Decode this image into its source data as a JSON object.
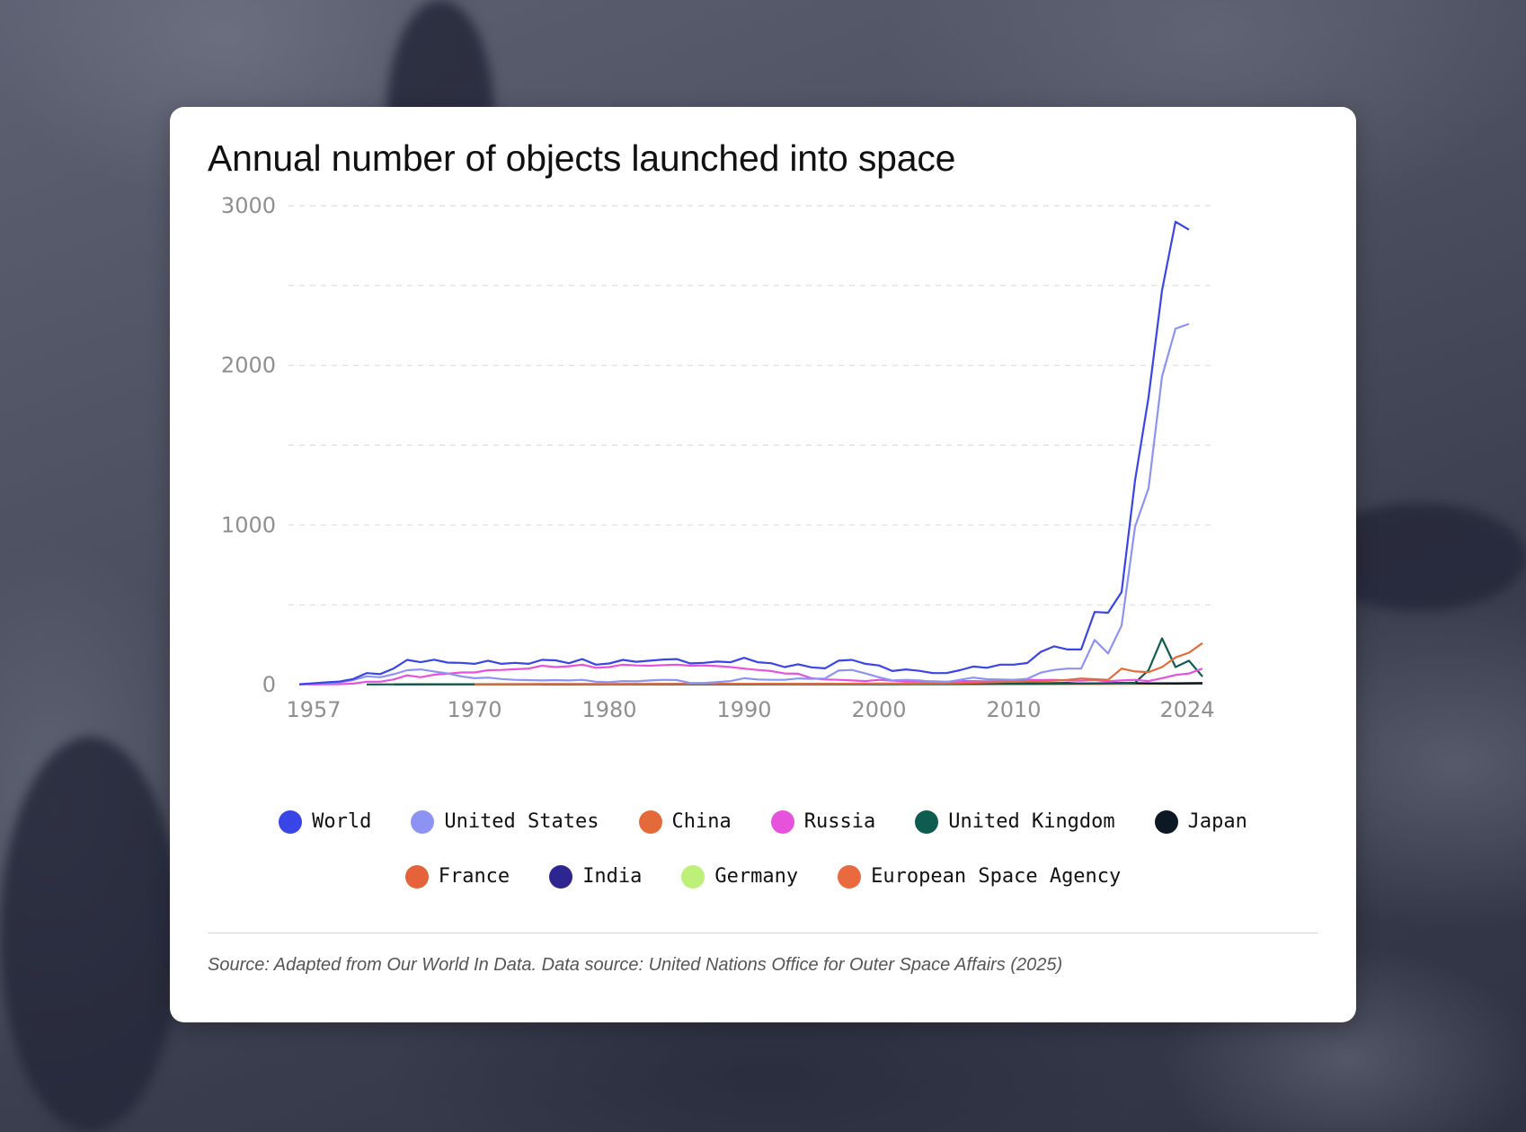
{
  "chart_data": {
    "type": "line",
    "title": "Annual number of objects launched into space",
    "source": "Source: Adapted from Our World In Data. Data source: United Nations Office for Outer Space Affairs (2025)",
    "ylim": [
      0,
      3000
    ],
    "xlim": [
      1957,
      2025
    ],
    "y_ticks": [
      "0",
      "1000",
      "2000",
      "3000"
    ],
    "x_ticks": [
      "1957",
      "1970",
      "1980",
      "1990",
      "2000",
      "2010",
      "2024"
    ],
    "grid": "horizontal-dashed",
    "legend_position": "bottom",
    "series": [
      {
        "name": "World",
        "color": "#3945e6",
        "points": [
          [
            1957,
            2
          ],
          [
            1958,
            8
          ],
          [
            1959,
            14
          ],
          [
            1960,
            19
          ],
          [
            1961,
            35
          ],
          [
            1962,
            72
          ],
          [
            1963,
            66
          ],
          [
            1964,
            101
          ],
          [
            1965,
            155
          ],
          [
            1966,
            140
          ],
          [
            1967,
            156
          ],
          [
            1968,
            138
          ],
          [
            1969,
            136
          ],
          [
            1970,
            130
          ],
          [
            1971,
            150
          ],
          [
            1972,
            130
          ],
          [
            1973,
            136
          ],
          [
            1974,
            130
          ],
          [
            1975,
            155
          ],
          [
            1976,
            152
          ],
          [
            1977,
            134
          ],
          [
            1978,
            160
          ],
          [
            1979,
            125
          ],
          [
            1980,
            132
          ],
          [
            1981,
            155
          ],
          [
            1982,
            143
          ],
          [
            1983,
            150
          ],
          [
            1984,
            157
          ],
          [
            1985,
            160
          ],
          [
            1986,
            133
          ],
          [
            1987,
            136
          ],
          [
            1988,
            144
          ],
          [
            1989,
            140
          ],
          [
            1990,
            168
          ],
          [
            1991,
            140
          ],
          [
            1992,
            134
          ],
          [
            1993,
            110
          ],
          [
            1994,
            127
          ],
          [
            1995,
            108
          ],
          [
            1996,
            102
          ],
          [
            1997,
            150
          ],
          [
            1998,
            155
          ],
          [
            1999,
            130
          ],
          [
            2000,
            120
          ],
          [
            2001,
            85
          ],
          [
            2002,
            95
          ],
          [
            2003,
            86
          ],
          [
            2004,
            72
          ],
          [
            2005,
            72
          ],
          [
            2006,
            90
          ],
          [
            2007,
            113
          ],
          [
            2008,
            105
          ],
          [
            2009,
            125
          ],
          [
            2010,
            125
          ],
          [
            2011,
            135
          ],
          [
            2012,
            205
          ],
          [
            2013,
            240
          ],
          [
            2014,
            220
          ],
          [
            2015,
            220
          ],
          [
            2016,
            455
          ],
          [
            2017,
            450
          ],
          [
            2018,
            580
          ],
          [
            2019,
            1280
          ],
          [
            2020,
            1800
          ],
          [
            2021,
            2470
          ],
          [
            2022,
            2900
          ],
          [
            2023,
            2850
          ]
        ]
      },
      {
        "name": "United States",
        "color": "#8c93f2",
        "points": [
          [
            1957,
            0
          ],
          [
            1958,
            6
          ],
          [
            1959,
            10
          ],
          [
            1960,
            14
          ],
          [
            1961,
            28
          ],
          [
            1962,
            52
          ],
          [
            1963,
            46
          ],
          [
            1964,
            65
          ],
          [
            1965,
            90
          ],
          [
            1966,
            95
          ],
          [
            1967,
            82
          ],
          [
            1968,
            70
          ],
          [
            1969,
            52
          ],
          [
            1970,
            40
          ],
          [
            1971,
            44
          ],
          [
            1972,
            35
          ],
          [
            1973,
            30
          ],
          [
            1974,
            28
          ],
          [
            1975,
            26
          ],
          [
            1976,
            28
          ],
          [
            1977,
            26
          ],
          [
            1978,
            30
          ],
          [
            1979,
            18
          ],
          [
            1980,
            15
          ],
          [
            1981,
            22
          ],
          [
            1982,
            20
          ],
          [
            1983,
            26
          ],
          [
            1984,
            30
          ],
          [
            1985,
            28
          ],
          [
            1986,
            10
          ],
          [
            1987,
            10
          ],
          [
            1988,
            16
          ],
          [
            1989,
            22
          ],
          [
            1990,
            40
          ],
          [
            1991,
            32
          ],
          [
            1992,
            30
          ],
          [
            1993,
            30
          ],
          [
            1994,
            38
          ],
          [
            1995,
            36
          ],
          [
            1996,
            38
          ],
          [
            1997,
            88
          ],
          [
            1998,
            92
          ],
          [
            1999,
            70
          ],
          [
            2000,
            46
          ],
          [
            2001,
            26
          ],
          [
            2002,
            30
          ],
          [
            2003,
            26
          ],
          [
            2004,
            18
          ],
          [
            2005,
            16
          ],
          [
            2006,
            30
          ],
          [
            2007,
            44
          ],
          [
            2008,
            34
          ],
          [
            2009,
            32
          ],
          [
            2010,
            30
          ],
          [
            2011,
            36
          ],
          [
            2012,
            75
          ],
          [
            2013,
            92
          ],
          [
            2014,
            100
          ],
          [
            2015,
            100
          ],
          [
            2016,
            280
          ],
          [
            2017,
            195
          ],
          [
            2018,
            370
          ],
          [
            2019,
            990
          ],
          [
            2020,
            1230
          ],
          [
            2021,
            1930
          ],
          [
            2022,
            2230
          ],
          [
            2023,
            2260
          ]
        ]
      },
      {
        "name": "China",
        "color": "#e56a3a",
        "points": [
          [
            1970,
            1
          ],
          [
            1975,
            3
          ],
          [
            1980,
            2
          ],
          [
            1985,
            4
          ],
          [
            1990,
            5
          ],
          [
            1995,
            4
          ],
          [
            2000,
            6
          ],
          [
            2005,
            8
          ],
          [
            2010,
            18
          ],
          [
            2013,
            24
          ],
          [
            2014,
            30
          ],
          [
            2015,
            38
          ],
          [
            2016,
            34
          ],
          [
            2017,
            30
          ],
          [
            2018,
            100
          ],
          [
            2019,
            82
          ],
          [
            2020,
            78
          ],
          [
            2021,
            110
          ],
          [
            2022,
            170
          ],
          [
            2023,
            200
          ],
          [
            2024,
            260
          ]
        ]
      },
      {
        "name": "Russia",
        "color": "#e752dc",
        "points": [
          [
            1957,
            2
          ],
          [
            1958,
            1
          ],
          [
            1959,
            2
          ],
          [
            1960,
            3
          ],
          [
            1961,
            6
          ],
          [
            1962,
            18
          ],
          [
            1963,
            18
          ],
          [
            1964,
            32
          ],
          [
            1965,
            58
          ],
          [
            1966,
            46
          ],
          [
            1967,
            62
          ],
          [
            1968,
            68
          ],
          [
            1969,
            76
          ],
          [
            1970,
            76
          ],
          [
            1971,
            90
          ],
          [
            1972,
            92
          ],
          [
            1973,
            96
          ],
          [
            1974,
            100
          ],
          [
            1975,
            118
          ],
          [
            1976,
            110
          ],
          [
            1977,
            115
          ],
          [
            1978,
            125
          ],
          [
            1979,
            105
          ],
          [
            1980,
            110
          ],
          [
            1981,
            125
          ],
          [
            1982,
            120
          ],
          [
            1983,
            118
          ],
          [
            1984,
            122
          ],
          [
            1985,
            125
          ],
          [
            1986,
            118
          ],
          [
            1987,
            120
          ],
          [
            1988,
            116
          ],
          [
            1989,
            110
          ],
          [
            1990,
            100
          ],
          [
            1991,
            92
          ],
          [
            1992,
            85
          ],
          [
            1993,
            70
          ],
          [
            1994,
            68
          ],
          [
            1995,
            40
          ],
          [
            1996,
            32
          ],
          [
            1997,
            30
          ],
          [
            1998,
            26
          ],
          [
            1999,
            22
          ],
          [
            2000,
            30
          ],
          [
            2001,
            24
          ],
          [
            2002,
            20
          ],
          [
            2003,
            20
          ],
          [
            2004,
            20
          ],
          [
            2005,
            18
          ],
          [
            2006,
            22
          ],
          [
            2007,
            22
          ],
          [
            2008,
            20
          ],
          [
            2009,
            22
          ],
          [
            2010,
            24
          ],
          [
            2011,
            30
          ],
          [
            2012,
            28
          ],
          [
            2013,
            30
          ],
          [
            2014,
            26
          ],
          [
            2015,
            24
          ],
          [
            2016,
            28
          ],
          [
            2017,
            20
          ],
          [
            2018,
            26
          ],
          [
            2019,
            30
          ],
          [
            2020,
            22
          ],
          [
            2021,
            40
          ],
          [
            2022,
            60
          ],
          [
            2023,
            70
          ],
          [
            2024,
            100
          ]
        ]
      },
      {
        "name": "United Kingdom",
        "color": "#0e5c4f",
        "points": [
          [
            1962,
            1
          ],
          [
            1970,
            2
          ],
          [
            1980,
            2
          ],
          [
            1990,
            2
          ],
          [
            2000,
            3
          ],
          [
            2010,
            4
          ],
          [
            2015,
            6
          ],
          [
            2017,
            8
          ],
          [
            2018,
            10
          ],
          [
            2019,
            12
          ],
          [
            2020,
            90
          ],
          [
            2021,
            290
          ],
          [
            2022,
            110
          ],
          [
            2023,
            150
          ],
          [
            2024,
            50
          ]
        ]
      },
      {
        "name": "Japan",
        "color": "#0c1824",
        "points": [
          [
            1964,
            1
          ],
          [
            1970,
            2
          ],
          [
            1980,
            3
          ],
          [
            1990,
            4
          ],
          [
            2000,
            4
          ],
          [
            2010,
            6
          ],
          [
            2014,
            10
          ],
          [
            2015,
            6
          ],
          [
            2016,
            8
          ],
          [
            2018,
            10
          ],
          [
            2020,
            8
          ],
          [
            2022,
            6
          ],
          [
            2024,
            8
          ]
        ]
      },
      {
        "name": "France",
        "color": "#e5623a",
        "points": [
          [
            1965,
            2
          ],
          [
            1975,
            3
          ],
          [
            1985,
            3
          ],
          [
            1995,
            3
          ],
          [
            2005,
            4
          ],
          [
            2015,
            5
          ],
          [
            2020,
            6
          ],
          [
            2024,
            8
          ]
        ]
      },
      {
        "name": "India",
        "color": "#2d2590",
        "points": [
          [
            1975,
            1
          ],
          [
            1985,
            2
          ],
          [
            1995,
            2
          ],
          [
            2005,
            3
          ],
          [
            2010,
            5
          ],
          [
            2015,
            6
          ],
          [
            2020,
            8
          ],
          [
            2024,
            10
          ]
        ]
      },
      {
        "name": "Germany",
        "color": "#bdf079",
        "points": [
          [
            1970,
            1
          ],
          [
            1980,
            2
          ],
          [
            1990,
            3
          ],
          [
            2000,
            3
          ],
          [
            2010,
            4
          ],
          [
            2018,
            6
          ],
          [
            2020,
            5
          ],
          [
            2024,
            7
          ]
        ]
      },
      {
        "name": "European Space Agency",
        "color": "#e86a3e",
        "points": [
          [
            1975,
            1
          ],
          [
            1985,
            2
          ],
          [
            1995,
            2
          ],
          [
            2005,
            3
          ],
          [
            2015,
            4
          ],
          [
            2020,
            5
          ],
          [
            2024,
            6
          ]
        ]
      }
    ]
  }
}
